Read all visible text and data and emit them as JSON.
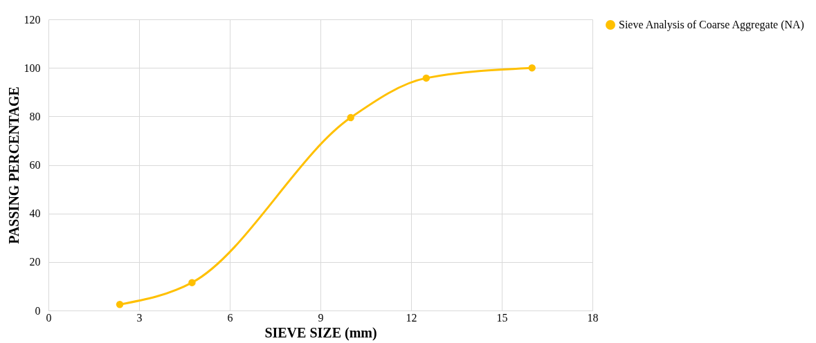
{
  "chart_data": {
    "type": "line",
    "xlabel": "SIEVE SIZE (mm)",
    "ylabel": "PASSING PERCENTAGE",
    "x": [
      2.36,
      4.75,
      10,
      12.5,
      16
    ],
    "series": [
      {
        "name": "Sieve Analysis of Coarse Aggregate (NA)",
        "color": "#ffc000",
        "values": [
          2.5,
          11.5,
          79.5,
          95.8,
          100
        ]
      }
    ],
    "xlim": [
      0,
      18
    ],
    "xticks": [
      0,
      3,
      6,
      9,
      12,
      15,
      18
    ],
    "ylim": [
      0,
      120
    ],
    "yticks": [
      0,
      20,
      40,
      60,
      80,
      100,
      120
    ],
    "grid": true,
    "legend": "right",
    "marker": "circle",
    "line_style": "solid"
  }
}
